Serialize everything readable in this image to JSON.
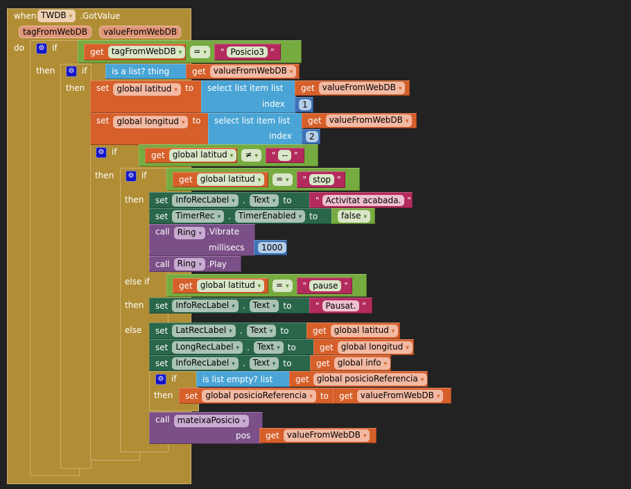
{
  "kw": {
    "when": "when",
    "do": "do",
    "if": "if",
    "then": "then",
    "else_if": "else if",
    "else": "else",
    "get": "get",
    "set": "set",
    "to": "to",
    "call": "call",
    "dot": ".",
    "quote": "\"",
    "index": "index",
    "list": "list",
    "eq": "=",
    "neq": "≠",
    "arrow": "▾"
  },
  "event": {
    "component": "TWDB",
    "name": ".GotValue",
    "params": [
      "tagFromWebDB",
      "valueFromWebDB"
    ]
  },
  "if1": {
    "var": "tagFromWebDB",
    "op": "=",
    "text": "Posicio3"
  },
  "if2": {
    "test": "is a list?  thing",
    "var": "valueFromWebDB"
  },
  "set_lat": {
    "var": "global latitud",
    "select": "select list item  list",
    "get": "valueFromWebDB",
    "index": "1"
  },
  "set_lon": {
    "var": "global longitud",
    "select": "select list item  list",
    "get": "valueFromWebDB",
    "index": "2"
  },
  "if3": {
    "var": "global latitud",
    "op": "≠",
    "text": "--"
  },
  "if4": {
    "var": "global latitud",
    "op": "=",
    "text": "stop"
  },
  "stop_branch": {
    "label": "InfoRecLabel",
    "prop": "Text",
    "text": "Activitat acabada.",
    "timer": "TimerRec",
    "timer_prop": "TimerEnabled",
    "bool": "false",
    "ring": "Ring",
    "vibrate": ".Vibrate",
    "millisecs": "millisecs",
    "ms": "1000",
    "play": ".Play"
  },
  "elseif": {
    "var": "global latitud",
    "op": "=",
    "text": "pause",
    "label": "InfoRecLabel",
    "prop": "Text",
    "set_text": "Pausat."
  },
  "else_branch": {
    "lat_label": "LatRecLabel",
    "lat_var": "global latitud",
    "long_label": "LongRecLabel",
    "long_var": "global longitud",
    "info_label": "InfoRecLabel",
    "info_var": "global info",
    "prop": "Text"
  },
  "if5": {
    "test": "is list empty?  list",
    "var": "global posicioReferencia",
    "set_var": "global posicioReferencia",
    "get": "valueFromWebDB"
  },
  "proc": {
    "name": "mateixaPosicio",
    "arg": "pos",
    "get": "valueFromWebDB"
  }
}
